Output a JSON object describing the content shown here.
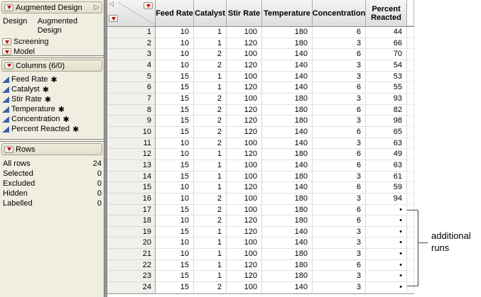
{
  "colors": {
    "accent_red": "#cc0000",
    "column_icon_blue": "#3a63ae",
    "panel_bg": "#f0eee1",
    "bracket_gray": "#7a7a7a"
  },
  "sidebar": {
    "design_panel": {
      "title": "Augmented Design",
      "design_label": "Design",
      "design_value": "Augmented Design",
      "items": [
        {
          "label": "Screening"
        },
        {
          "label": "Model"
        }
      ]
    },
    "columns_panel": {
      "title": "Columns (6/0)",
      "items": [
        {
          "label": "Feed Rate",
          "marker": "✱"
        },
        {
          "label": "Catalyst",
          "marker": "✱"
        },
        {
          "label": "Stir Rate",
          "marker": "✱"
        },
        {
          "label": "Temperature",
          "marker": "✱"
        },
        {
          "label": "Concentration",
          "marker": "✱"
        },
        {
          "label": "Percent Reacted",
          "marker": "✱"
        }
      ]
    },
    "rows_panel": {
      "title": "Rows",
      "stats": [
        {
          "label": "All rows",
          "value": "24"
        },
        {
          "label": "Selected",
          "value": "0"
        },
        {
          "label": "Excluded",
          "value": "0"
        },
        {
          "label": "Hidden",
          "value": "0"
        },
        {
          "label": "Labelled",
          "value": "0"
        }
      ]
    }
  },
  "table": {
    "header_lines": [
      [
        "Feed Rate"
      ],
      [
        "Catalyst"
      ],
      [
        "Stir Rate"
      ],
      [
        "Temperature"
      ],
      [
        "Concentration"
      ],
      [
        "Percent",
        "Reacted"
      ]
    ],
    "rows": [
      [
        1,
        10,
        1,
        100,
        180,
        6,
        "44"
      ],
      [
        2,
        10,
        1,
        120,
        180,
        3,
        "66"
      ],
      [
        3,
        10,
        2,
        100,
        140,
        6,
        "70"
      ],
      [
        4,
        10,
        2,
        120,
        140,
        3,
        "54"
      ],
      [
        5,
        15,
        1,
        100,
        140,
        3,
        "53"
      ],
      [
        6,
        15,
        1,
        120,
        140,
        6,
        "55"
      ],
      [
        7,
        15,
        2,
        100,
        180,
        3,
        "93"
      ],
      [
        8,
        15,
        2,
        120,
        180,
        6,
        "82"
      ],
      [
        9,
        15,
        2,
        120,
        180,
        3,
        "98"
      ],
      [
        10,
        15,
        2,
        120,
        140,
        6,
        "65"
      ],
      [
        11,
        10,
        2,
        100,
        140,
        3,
        "63"
      ],
      [
        12,
        10,
        1,
        120,
        180,
        6,
        "49"
      ],
      [
        13,
        15,
        1,
        100,
        140,
        6,
        "63"
      ],
      [
        14,
        15,
        1,
        100,
        180,
        3,
        "61"
      ],
      [
        15,
        10,
        1,
        120,
        140,
        6,
        "59"
      ],
      [
        16,
        10,
        2,
        100,
        180,
        3,
        "94"
      ],
      [
        17,
        15,
        2,
        100,
        180,
        6,
        "•"
      ],
      [
        18,
        10,
        2,
        120,
        180,
        6,
        "•"
      ],
      [
        19,
        15,
        1,
        120,
        140,
        3,
        "•"
      ],
      [
        20,
        10,
        1,
        100,
        140,
        3,
        "•"
      ],
      [
        21,
        10,
        1,
        100,
        180,
        3,
        "•"
      ],
      [
        22,
        15,
        1,
        120,
        180,
        6,
        "•"
      ],
      [
        23,
        15,
        1,
        120,
        180,
        3,
        "•"
      ],
      [
        24,
        15,
        2,
        100,
        140,
        3,
        "•"
      ]
    ]
  },
  "annotation": {
    "line1": "additional",
    "line2": "runs"
  }
}
